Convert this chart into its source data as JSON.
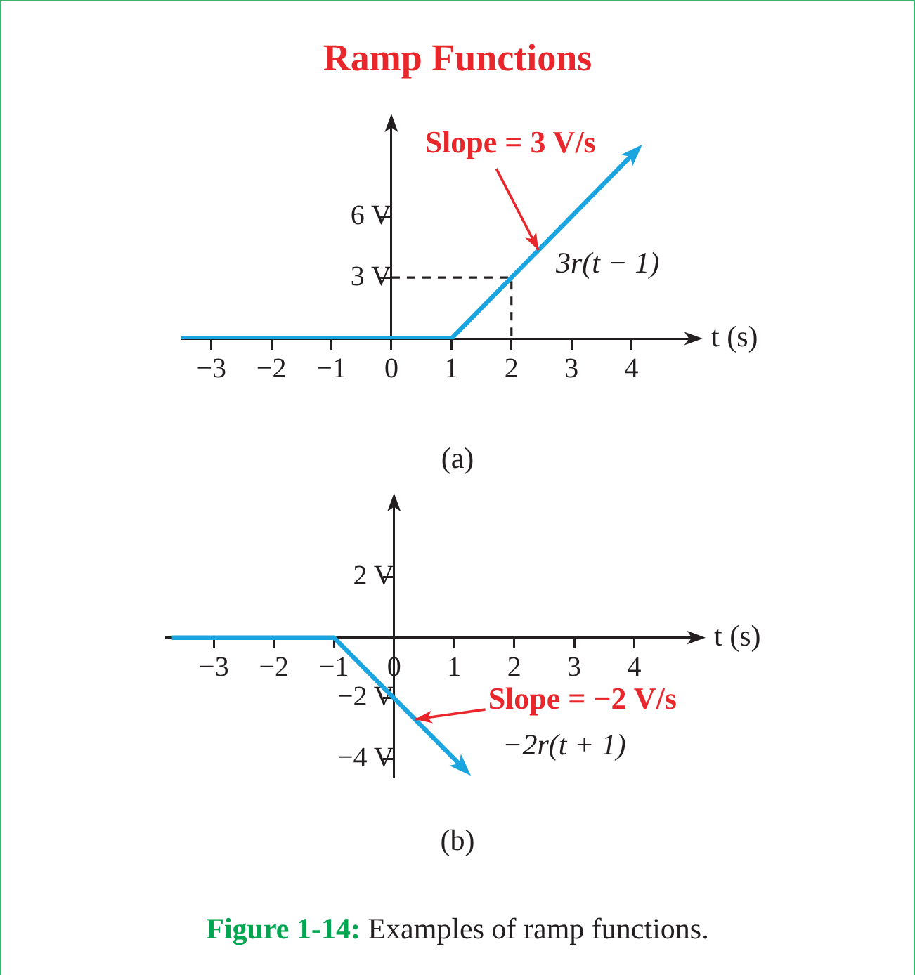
{
  "chart_data": [
    {
      "type": "line",
      "title": "Ramp Functions",
      "xlabel": "t (s)",
      "grid": false,
      "legend": false,
      "series": [
        {
          "color": "#1aa5e0",
          "x": [
            -3.5,
            1,
            4
          ],
          "values": [
            0,
            0,
            9
          ]
        },
        {
          "color": "#231f20",
          "line_style": "dashed",
          "x": [
            0,
            2,
            2
          ],
          "values": [
            3,
            3,
            0
          ]
        }
      ],
      "xlim": [
        -3.5,
        5
      ],
      "ylim": [
        0,
        10.5
      ],
      "xticks": [
        {
          "value": -3,
          "label": "−3"
        },
        {
          "value": -2,
          "label": "−2"
        },
        {
          "value": -1,
          "label": "−1"
        },
        0,
        1,
        2,
        3,
        4
      ],
      "yticks": [
        {
          "value": 3,
          "label": "3 V"
        },
        {
          "value": 6,
          "label": "6 V"
        }
      ],
      "annotations": [
        {
          "text": "Slope = 3 V/s",
          "x": 2.45,
          "y": 4.35
        },
        {
          "text": "3r(t − 1)",
          "x": 2.6,
          "y": 4.8
        },
        "(a)"
      ]
    },
    {
      "type": "line",
      "xlabel": "t (s)",
      "grid": false,
      "legend": false,
      "series": [
        {
          "color": "#1aa5e0",
          "x": [
            -3.7,
            -1,
            1.15
          ],
          "values": [
            0,
            0,
            -4.3
          ]
        }
      ],
      "xlim": [
        -3.8,
        5
      ],
      "ylim": [
        -4.6,
        4.4
      ],
      "xticks": [
        {
          "value": -3,
          "label": "−3"
        },
        {
          "value": -2,
          "label": "−2"
        },
        {
          "value": -1,
          "label": "−1"
        },
        0,
        1,
        2,
        3,
        4
      ],
      "yticks": [
        {
          "value": -4,
          "label": "−4 V"
        },
        {
          "value": -2,
          "label": "−2 V"
        },
        {
          "value": 2,
          "label": "2 V"
        }
      ],
      "annotations": [
        {
          "text": "Slope = −2 V/s",
          "x": 0.35,
          "y": -2.7
        },
        {
          "text": "−2r(t + 1)",
          "x": 0.8,
          "y": -3.6
        },
        "(b)",
        "Figure 1-14: Examples of ramp functions."
      ]
    }
  ]
}
